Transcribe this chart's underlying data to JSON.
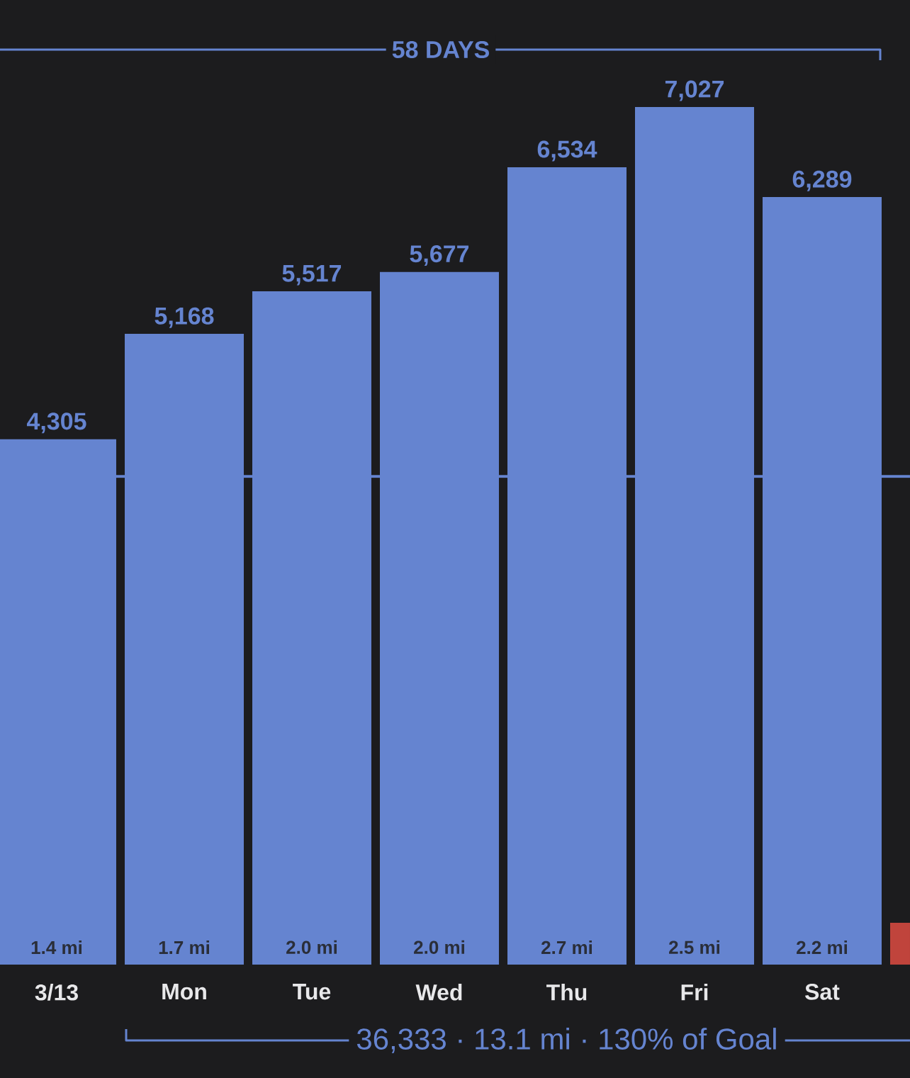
{
  "chart_data": {
    "type": "bar",
    "categories": [
      "3/13",
      "Mon",
      "Tue",
      "Wed",
      "Thu",
      "Fri",
      "Sat",
      null
    ],
    "values": [
      4305,
      5168,
      5517,
      5677,
      6534,
      7027,
      6289,
      343
    ],
    "colors": [
      "#6584d0",
      "#6584d0",
      "#6584d0",
      "#6584d0",
      "#6584d0",
      "#6584d0",
      "#6584d0",
      "#c0443c"
    ],
    "value_labels": [
      "4,305",
      "5,168",
      "5,517",
      "5,677",
      "6,534",
      "7,027",
      "6,289",
      null
    ],
    "ref_lines": [
      {
        "axis": "y",
        "value": 4000,
        "color": "#6584d0"
      }
    ],
    "annotations": [
      "58 DAYS",
      "36,333 · 13.1 mi · 130% of Goal",
      "1.4 mi",
      "1.7 mi",
      "2.0 mi",
      "2.0 mi",
      "2.7 mi",
      "2.5 mi",
      "2.2 mi"
    ]
  }
}
